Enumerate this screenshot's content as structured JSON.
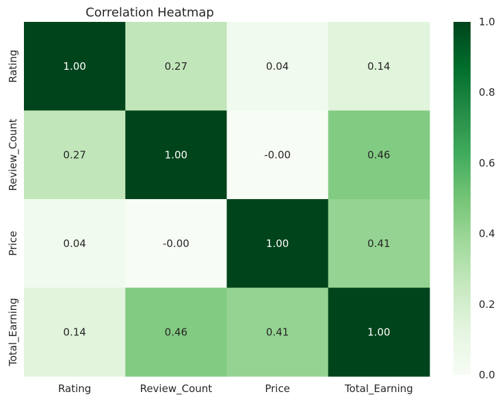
{
  "chart_data": {
    "type": "heatmap",
    "title": "Correlation Heatmap",
    "x_categories": [
      "Rating",
      "Review_Count",
      "Price",
      "Total_Earning"
    ],
    "y_categories": [
      "Rating",
      "Review_Count",
      "Price",
      "Total_Earning"
    ],
    "values": [
      [
        1.0,
        0.27,
        0.04,
        0.14
      ],
      [
        0.27,
        1.0,
        -0.0,
        0.46
      ],
      [
        0.04,
        -0.0,
        1.0,
        0.41
      ],
      [
        0.14,
        0.46,
        0.41,
        1.0
      ]
    ],
    "annotations": [
      [
        "1.00",
        "0.27",
        "0.04",
        "0.14"
      ],
      [
        "0.27",
        "1.00",
        "-0.00",
        "0.46"
      ],
      [
        "0.04",
        "-0.00",
        "1.00",
        "0.41"
      ],
      [
        "0.14",
        "0.46",
        "0.41",
        "1.00"
      ]
    ],
    "colormap": "Greens",
    "vmin": 0.0,
    "vmax": 1.0,
    "colorbar_ticks": [
      "0.0",
      "0.2",
      "0.4",
      "0.6",
      "0.8",
      "1.0"
    ],
    "colorbar_tick_values": [
      0.0,
      0.2,
      0.4,
      0.6,
      0.8,
      1.0
    ],
    "annotation_colors": {
      "dark_bg": "#ffffff",
      "light_bg": "#262626"
    }
  }
}
